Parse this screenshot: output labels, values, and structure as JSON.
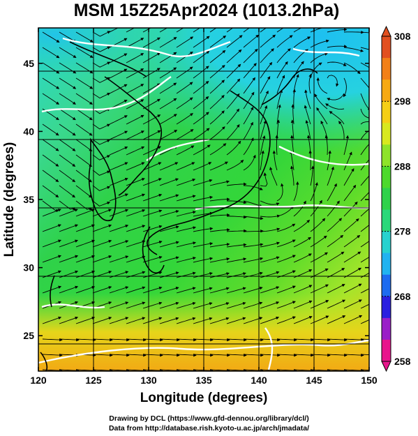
{
  "title": "MSM 15Z25Apr2024 (1013.2hPa)",
  "xaxis": {
    "label": "Longitude (degrees)",
    "range": [
      120,
      150
    ],
    "ticks": [
      120,
      125,
      130,
      135,
      140,
      145,
      150
    ]
  },
  "yaxis": {
    "label": "Latitude  (degrees)",
    "range": [
      22.4,
      47.6
    ],
    "ticks": [
      25,
      30,
      35,
      40,
      45
    ]
  },
  "colorbar": {
    "range": [
      258,
      308
    ],
    "labels": [
      308,
      298,
      288,
      278,
      268,
      258
    ],
    "colors": [
      "#e8158c",
      "#9a1ec8",
      "#2a1ee0",
      "#1d6bf0",
      "#21b3f0",
      "#27d2cf",
      "#2ad87a",
      "#2fd24a",
      "#4dd92c",
      "#8ee32a",
      "#d8e81f",
      "#f5cf16",
      "#f7a912",
      "#f28018",
      "#e25020"
    ]
  },
  "credits": {
    "line1": "Drawing by DCL (https://www.gfd-dennou.org/library/dcl/)",
    "line2": "Data from http://database.rish.kyoto-u.ac.jp/arch/jmadata/"
  }
}
